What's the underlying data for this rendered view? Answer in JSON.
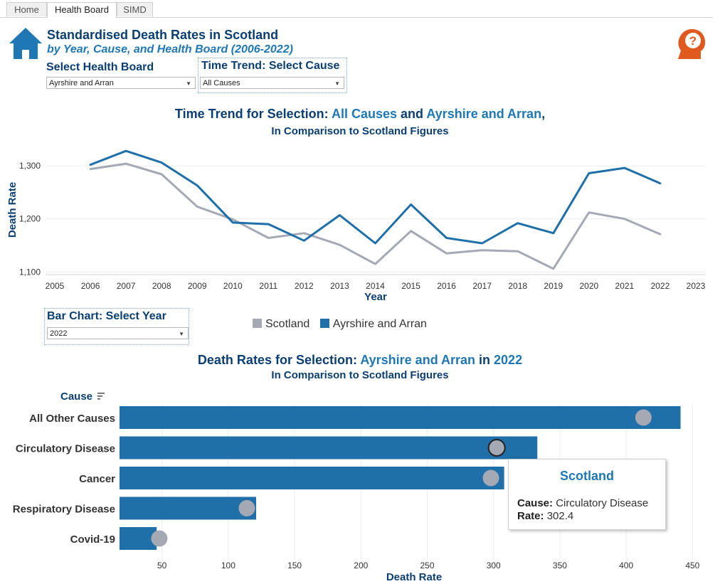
{
  "tabs": [
    {
      "label": "Home",
      "active": false
    },
    {
      "label": "Health Board",
      "active": true
    },
    {
      "label": "SIMD",
      "active": false
    }
  ],
  "header": {
    "title": "Standardised Death Rates in Scotland",
    "subtitle": "by Year, Cause, and Health Board (2006-2022)"
  },
  "controls": {
    "health_board_label": "Select Health Board",
    "health_board_value": "Ayrshire and Arran",
    "cause_label": "Time Trend: Select Cause",
    "cause_value": "All Causes",
    "year_label": "Bar Chart: Select Year",
    "year_value": "2022"
  },
  "trend_title": {
    "prefix": "Time Trend for Selection: ",
    "cause": "All Causes",
    "and": " and ",
    "board": "Ayrshire and Arran",
    "suffix": ",",
    "line2": "In Comparison to Scotland Figures"
  },
  "bar_title": {
    "prefix": "Death Rates for Selection: ",
    "board": "Ayrshire and Arran",
    "in": " in ",
    "year": "2022",
    "line2": "In Comparison to Scotland Figures"
  },
  "tooltip": {
    "title": "Scotland",
    "cause_label": "Cause:",
    "cause_value": "Circulatory Disease",
    "rate_label": "Rate:",
    "rate_value": "302.4"
  },
  "colors": {
    "scotland": "#a5a9b4",
    "board": "#1f6fa8",
    "title_dark": "#0b3f72",
    "highlight": "#1f77b4",
    "icon_orange": "#e05a1f"
  },
  "chart_data": [
    {
      "type": "line",
      "xlabel": "Year",
      "ylabel": "Death Rate",
      "xlim": [
        2005,
        2023
      ],
      "ylim": [
        1095,
        1335
      ],
      "x_ticks": [
        2005,
        2006,
        2007,
        2008,
        2009,
        2010,
        2011,
        2012,
        2013,
        2014,
        2015,
        2016,
        2017,
        2018,
        2019,
        2020,
        2021,
        2022,
        2023
      ],
      "y_ticks": [
        1100,
        1200,
        1300
      ],
      "y_tick_labels": [
        "1,100",
        "1,200",
        "1,300"
      ],
      "x": [
        2006,
        2007,
        2008,
        2009,
        2010,
        2011,
        2012,
        2013,
        2014,
        2015,
        2016,
        2017,
        2018,
        2019,
        2020,
        2021,
        2022
      ],
      "series": [
        {
          "name": "Scotland",
          "color": "#a5a9b4",
          "values": [
            1294,
            1304,
            1284,
            1223,
            1199,
            1164,
            1173,
            1151,
            1115,
            1177,
            1135,
            1141,
            1139,
            1106,
            1212,
            1200,
            1171
          ]
        },
        {
          "name": "Ayrshire and Arran",
          "color": "#1f6fa8",
          "values": [
            1302,
            1328,
            1306,
            1263,
            1193,
            1190,
            1159,
            1207,
            1154,
            1227,
            1164,
            1154,
            1192,
            1173,
            1286,
            1296,
            1267
          ]
        }
      ],
      "legend": "bottom",
      "grid": true
    },
    {
      "type": "bar",
      "ylabel": "Cause",
      "xlabel": "Death Rate",
      "xlim": [
        18,
        460
      ],
      "x_ticks": [
        50,
        100,
        150,
        200,
        250,
        300,
        350,
        400,
        450
      ],
      "categories": [
        "All Other Causes",
        "Circulatory Disease",
        "Cancer",
        "Respiratory Disease",
        "Covid-19"
      ],
      "series": [
        {
          "name": "Ayrshire and Arran",
          "color": "#1f6fa8",
          "values": [
            441,
            333,
            308,
            121,
            46
          ]
        },
        {
          "name": "Scotland",
          "color": "#a5a9b4",
          "values": [
            413,
            302.4,
            298,
            114,
            48
          ]
        }
      ],
      "highlighted_category": "Circulatory Disease",
      "grid": true
    }
  ]
}
